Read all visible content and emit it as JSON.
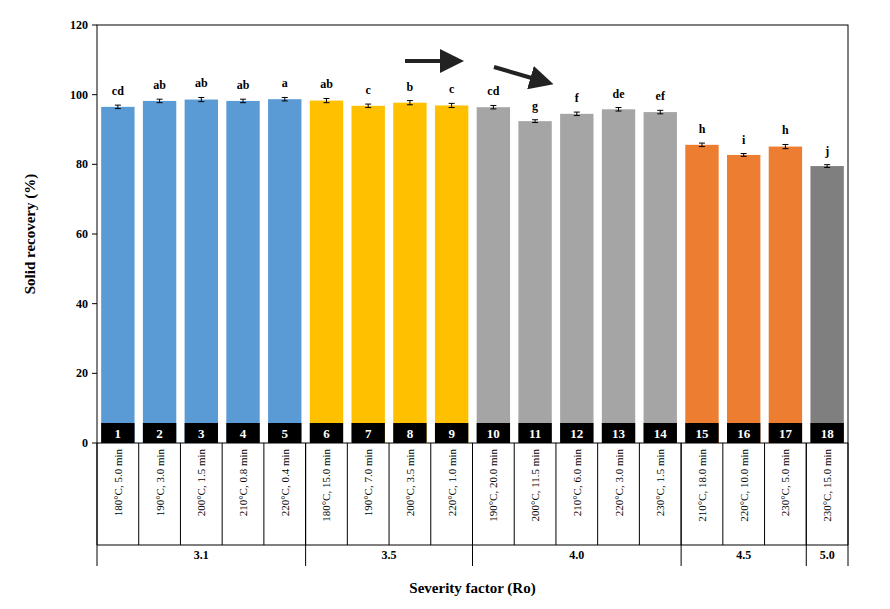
{
  "chart_data": {
    "type": "bar",
    "x_label": "Severity factor (Ro)",
    "y_label": "Solid recovery (%)",
    "categories": [
      "180°C, 5.0 min",
      "190°C, 3.0 min",
      "200°C, 1.5 min",
      "210°C, 0.8 min",
      "220°C, 0.4 min",
      "180°C, 15.0 min",
      "190°C, 7.0 min",
      "200°C, 3.5 min",
      "220°C, 1.0 min",
      "190°C, 20.0 min",
      "200°C, 11.5 min",
      "210°C, 6.0 min",
      "220°C, 3.0 min",
      "230°C, 1.5 min",
      "210°C, 18.0 min",
      "220°C, 10.0 min",
      "230°C, 5.0 min",
      "230°C, 15.0 min"
    ],
    "values": [
      96.5,
      98.2,
      98.6,
      98.2,
      98.7,
      98.3,
      96.8,
      97.7,
      96.9,
      96.4,
      92.4,
      94.5,
      95.8,
      95.0,
      85.6,
      82.7,
      85.1,
      79.5
    ],
    "errors": [
      0.5,
      0.5,
      0.6,
      0.5,
      0.5,
      0.6,
      0.5,
      0.6,
      0.6,
      0.5,
      0.4,
      0.5,
      0.5,
      0.5,
      0.5,
      0.4,
      0.6,
      0.4
    ],
    "significance": [
      "cd",
      "ab",
      "ab",
      "ab",
      "a",
      "ab",
      "c",
      "b",
      "c",
      "cd",
      "g",
      "f",
      "de",
      "ef",
      "h",
      "i",
      "h",
      "j"
    ],
    "bar_numbers": [
      1,
      2,
      3,
      4,
      5,
      6,
      7,
      8,
      9,
      10,
      11,
      12,
      13,
      14,
      15,
      16,
      17,
      18
    ],
    "groups": [
      {
        "name": "3.1",
        "count": 5
      },
      {
        "name": "3.5",
        "count": 4
      },
      {
        "name": "4.0",
        "count": 5
      },
      {
        "name": "4.5",
        "count": 3
      },
      {
        "name": "5.0",
        "count": 1
      }
    ],
    "colors": [
      "#5b9bd5",
      "#5b9bd5",
      "#5b9bd5",
      "#5b9bd5",
      "#5b9bd5",
      "#ffc000",
      "#ffc000",
      "#ffc000",
      "#ffc000",
      "#a5a5a5",
      "#a5a5a5",
      "#a5a5a5",
      "#a5a5a5",
      "#a5a5a5",
      "#ed7d31",
      "#ed7d31",
      "#ed7d31",
      "#7f7f7f"
    ],
    "ylim": [
      0,
      120
    ],
    "yticks": [
      0,
      20,
      40,
      60,
      80,
      100,
      120
    ],
    "grid": false
  }
}
